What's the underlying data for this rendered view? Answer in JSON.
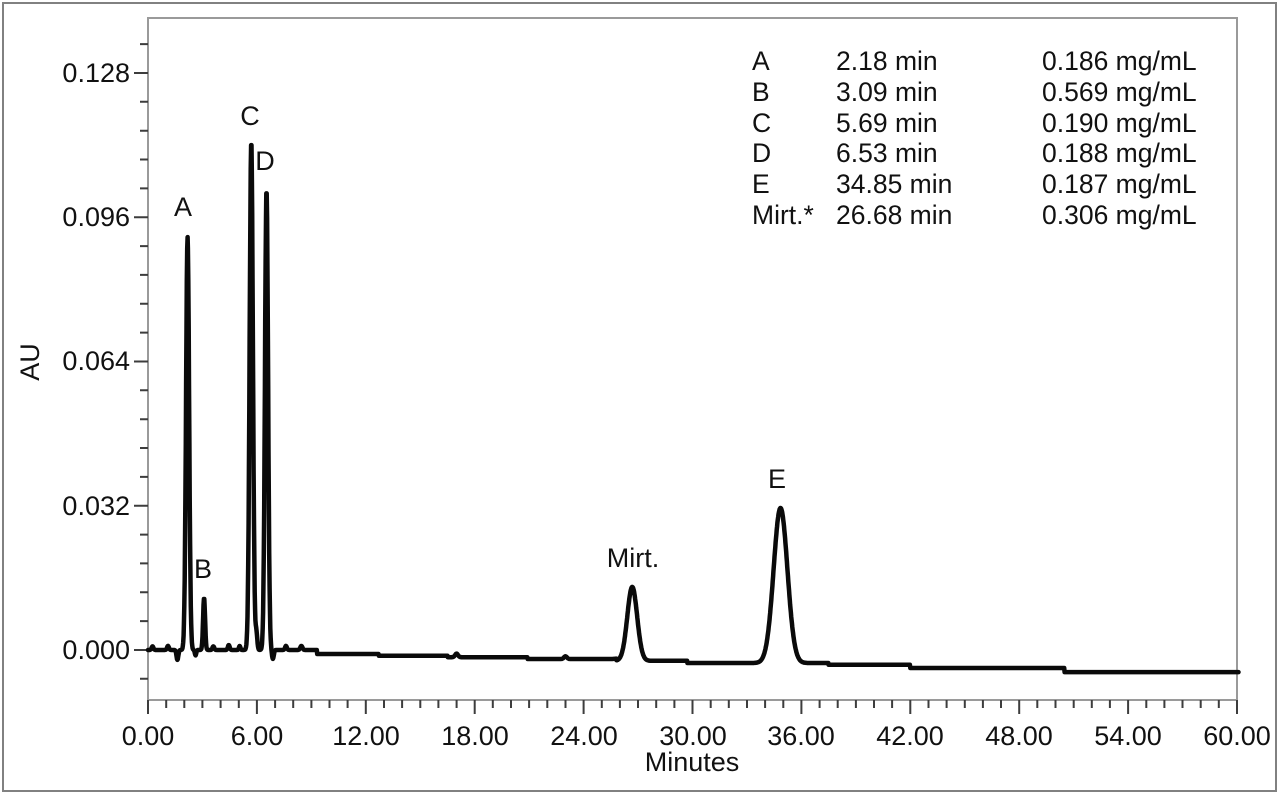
{
  "figure": {
    "background": "#ffffff",
    "border_color": "#818181",
    "frame_color": "#9a9a9a",
    "tick_color": "#3d3d3d",
    "trace_color": "#0a0a0a",
    "text_color": "#111111"
  },
  "axes": {
    "x_title": "Minutes",
    "y_title": "AU",
    "x_tick_labels": [
      "0.00",
      "6.00",
      "12.00",
      "18.00",
      "24.00",
      "30.00",
      "36.00",
      "42.00",
      "48.00",
      "54.00",
      "60.00"
    ],
    "y_tick_labels": [
      "0.000",
      "0.032",
      "0.064",
      "0.096",
      "0.128"
    ]
  },
  "annotation_table": {
    "rows": [
      {
        "component": "A",
        "retention": "2.18 min",
        "concentration": "0.186 mg/mL"
      },
      {
        "component": "B",
        "retention": "3.09 min",
        "concentration": "0.569 mg/mL"
      },
      {
        "component": "C",
        "retention": "5.69 min",
        "concentration": "0.190 mg/mL"
      },
      {
        "component": "D",
        "retention": "6.53 min",
        "concentration": "0.188 mg/mL"
      },
      {
        "component": "E",
        "retention": "34.85 min",
        "concentration": "0.187 mg/mL"
      },
      {
        "component": "Mirt.*",
        "retention": "26.68 min",
        "concentration": "0.306 mg/mL"
      }
    ]
  },
  "chart_data": {
    "type": "line",
    "title": "",
    "xlabel": "Minutes",
    "ylabel": "AU",
    "xlim": [
      0,
      60
    ],
    "ylim": [
      -0.0111,
      0.1402
    ],
    "grid": false,
    "x_major_ticks": [
      0,
      6,
      12,
      18,
      24,
      30,
      36,
      42,
      48,
      54,
      60
    ],
    "x_minor_step_min": 1,
    "y_major_ticks": [
      0,
      0.032,
      0.064,
      0.096,
      0.128
    ],
    "y_minor_step_au": 0.0064,
    "peaks": [
      {
        "label": "A",
        "time_min": 2.18,
        "apex_au": 0.0916,
        "sigma_min": 0.085,
        "label_pos": {
          "t": 1.93,
          "au": 0.0982
        }
      },
      {
        "label": "B",
        "time_min": 3.09,
        "apex_au": 0.0115,
        "sigma_min": 0.055,
        "label_pos": {
          "t": 3.02,
          "au": 0.018
        }
      },
      {
        "label": "C",
        "time_min": 5.69,
        "apex_au": 0.1127,
        "sigma_min": 0.09,
        "label_pos": {
          "t": 5.6,
          "au": 0.1185
        }
      },
      {
        "label": "D",
        "time_min": 6.53,
        "apex_au": 0.102,
        "sigma_min": 0.085,
        "label_pos": {
          "t": 6.46,
          "au": 0.1085
        }
      },
      {
        "label": "Mirt.",
        "time_min": 26.68,
        "apex_au": 0.014,
        "sigma_min": 0.27,
        "label_pos": {
          "t": 26.72,
          "au": 0.0205
        }
      },
      {
        "label": "E",
        "time_min": 34.85,
        "apex_au": 0.0315,
        "sigma_min": 0.38,
        "label_pos": {
          "t": 34.66,
          "au": 0.038
        }
      }
    ],
    "baseline_steps_t_au": [
      [
        0,
        0.0
      ],
      [
        9.3,
        -0.0009
      ],
      [
        12.7,
        -0.0013
      ],
      [
        16.5,
        -0.0016
      ],
      [
        20.9,
        -0.002
      ],
      [
        25.8,
        -0.0024
      ],
      [
        29.7,
        -0.0029
      ],
      [
        37.5,
        -0.0033
      ],
      [
        42.0,
        -0.004
      ],
      [
        50.5,
        -0.0049
      ]
    ],
    "noise_features_t_au_sigma": [
      [
        0.25,
        0.0008,
        0.05
      ],
      [
        1.1,
        0.0009,
        0.05
      ],
      [
        1.62,
        -0.0022,
        0.05
      ],
      [
        2.62,
        -0.0012,
        0.04
      ],
      [
        3.6,
        0.0008,
        0.05
      ],
      [
        4.45,
        0.0011,
        0.05
      ],
      [
        5.05,
        0.0009,
        0.04
      ],
      [
        5.97,
        0.0038,
        0.05
      ],
      [
        6.88,
        -0.002,
        0.05
      ],
      [
        7.6,
        0.0009,
        0.05
      ],
      [
        8.45,
        0.0009,
        0.06
      ],
      [
        17.0,
        0.0008,
        0.08
      ],
      [
        23.0,
        0.0006,
        0.08
      ]
    ]
  }
}
